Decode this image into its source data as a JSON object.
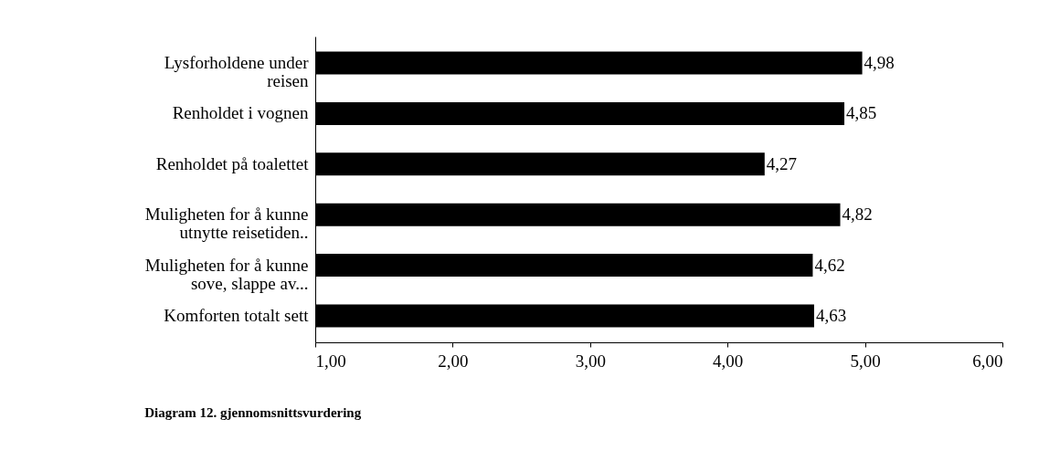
{
  "chart_data": {
    "type": "bar",
    "orientation": "horizontal",
    "categories": [
      "Lysforholdene under reisen",
      "Renholdet i vognen",
      "Renholdet på toalettet",
      "Muligheten for å kunne utnytte reisetiden..",
      "Muligheten for å kunne sove, slappe av...",
      "Komforten totalt sett"
    ],
    "values": [
      4.98,
      4.85,
      4.27,
      4.82,
      4.62,
      4.63
    ],
    "value_labels": [
      "4,98",
      "4,85",
      "4,27",
      "4,82",
      "4,62",
      "4,63"
    ],
    "color": "#000000",
    "xlim": [
      1,
      6
    ],
    "xticks": [
      {
        "value": 1,
        "label": "1,00"
      },
      {
        "value": 2,
        "label": "2,00"
      },
      {
        "value": 3,
        "label": "3,00"
      },
      {
        "value": 4,
        "label": "4,00"
      },
      {
        "value": 5,
        "label": "5,00"
      },
      {
        "value": 6,
        "label": "6,00"
      }
    ],
    "grid": false,
    "annotations": [
      "Diagram  12. gjennomsnittsvurdering"
    ]
  }
}
